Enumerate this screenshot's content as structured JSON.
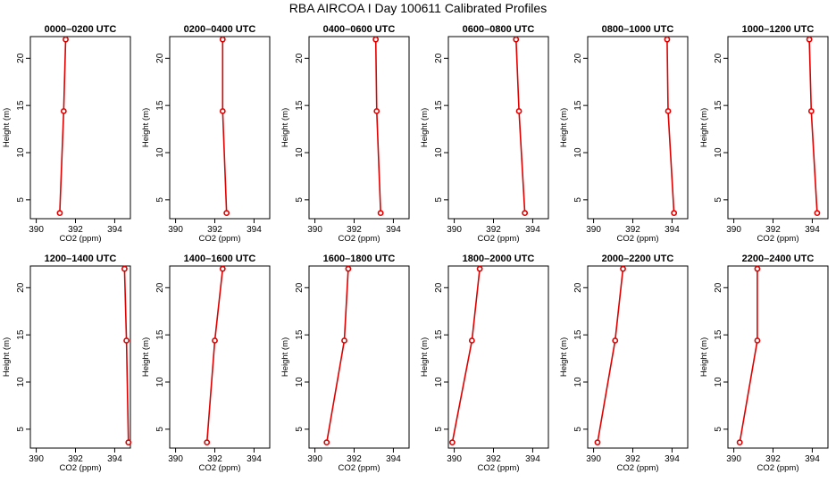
{
  "title": "RBA AIRCOA I  Day 100611  Calibrated Profiles",
  "colors": {
    "series": "#e00000",
    "axis": "#000000",
    "background": "#ffffff"
  },
  "chart_data": [
    {
      "type": "line",
      "title": "0000–0200 UTC",
      "xlabel": "CO2 (ppm)",
      "ylabel": "Height (m)",
      "xlim": [
        389.7,
        394.8
      ],
      "ylim": [
        3,
        22.3
      ],
      "xticks": [
        390,
        392,
        394
      ],
      "yticks": [
        5,
        10,
        15,
        20
      ],
      "x": [
        391.5,
        391.4,
        391.2
      ],
      "y": [
        22,
        14.4,
        3.6
      ]
    },
    {
      "type": "line",
      "title": "0200–0400 UTC",
      "xlabel": "CO2 (ppm)",
      "ylabel": "Height (m)",
      "xlim": [
        389.7,
        394.8
      ],
      "ylim": [
        3,
        22.3
      ],
      "xticks": [
        390,
        392,
        394
      ],
      "yticks": [
        5,
        10,
        15,
        20
      ],
      "x": [
        392.4,
        392.4,
        392.6
      ],
      "y": [
        22,
        14.4,
        3.6
      ]
    },
    {
      "type": "line",
      "title": "0400–0600 UTC",
      "xlabel": "CO2 (ppm)",
      "ylabel": "Height (m)",
      "xlim": [
        389.7,
        394.8
      ],
      "ylim": [
        3,
        22.3
      ],
      "xticks": [
        390,
        392,
        394
      ],
      "yticks": [
        5,
        10,
        15,
        20
      ],
      "x": [
        393.1,
        393.15,
        393.35
      ],
      "y": [
        22,
        14.4,
        3.6
      ]
    },
    {
      "type": "line",
      "title": "0600–0800 UTC",
      "xlabel": "CO2 (ppm)",
      "ylabel": "Height (m)",
      "xlim": [
        389.7,
        394.8
      ],
      "ylim": [
        3,
        22.3
      ],
      "xticks": [
        390,
        392,
        394
      ],
      "yticks": [
        5,
        10,
        15,
        20
      ],
      "x": [
        393.15,
        393.3,
        393.6
      ],
      "y": [
        22,
        14.4,
        3.6
      ]
    },
    {
      "type": "line",
      "title": "0800–1000 UTC",
      "xlabel": "CO2 (ppm)",
      "ylabel": "Height (m)",
      "xlim": [
        389.7,
        394.8
      ],
      "ylim": [
        3,
        22.3
      ],
      "xticks": [
        390,
        392,
        394
      ],
      "yticks": [
        5,
        10,
        15,
        20
      ],
      "x": [
        393.75,
        393.8,
        394.1
      ],
      "y": [
        22,
        14.4,
        3.6
      ]
    },
    {
      "type": "line",
      "title": "1000–1200 UTC",
      "xlabel": "CO2 (ppm)",
      "ylabel": "Height (m)",
      "xlim": [
        389.7,
        394.8
      ],
      "ylim": [
        3,
        22.3
      ],
      "xticks": [
        390,
        392,
        394
      ],
      "yticks": [
        5,
        10,
        15,
        20
      ],
      "x": [
        393.85,
        393.95,
        394.25
      ],
      "y": [
        22,
        14.4,
        3.6
      ]
    },
    {
      "type": "line",
      "title": "1200–1400 UTC",
      "xlabel": "CO2 (ppm)",
      "ylabel": "Height (m)",
      "xlim": [
        389.7,
        394.8
      ],
      "ylim": [
        3,
        22.3
      ],
      "xticks": [
        390,
        392,
        394
      ],
      "yticks": [
        5,
        10,
        15,
        20
      ],
      "x": [
        394.5,
        394.6,
        394.7
      ],
      "y": [
        22,
        14.4,
        3.6
      ]
    },
    {
      "type": "line",
      "title": "1400–1600 UTC",
      "xlabel": "CO2 (ppm)",
      "ylabel": "Height (m)",
      "xlim": [
        389.7,
        394.8
      ],
      "ylim": [
        3,
        22.3
      ],
      "xticks": [
        390,
        392,
        394
      ],
      "yticks": [
        5,
        10,
        15,
        20
      ],
      "x": [
        392.4,
        392.0,
        391.6
      ],
      "y": [
        22,
        14.4,
        3.6
      ]
    },
    {
      "type": "line",
      "title": "1600–1800 UTC",
      "xlabel": "CO2 (ppm)",
      "ylabel": "Height (m)",
      "xlim": [
        389.7,
        394.8
      ],
      "ylim": [
        3,
        22.3
      ],
      "xticks": [
        390,
        392,
        394
      ],
      "yticks": [
        5,
        10,
        15,
        20
      ],
      "x": [
        391.7,
        391.5,
        390.6
      ],
      "y": [
        22,
        14.4,
        3.6
      ]
    },
    {
      "type": "line",
      "title": "1800–2000 UTC",
      "xlabel": "CO2 (ppm)",
      "ylabel": "Height (m)",
      "xlim": [
        389.7,
        394.8
      ],
      "ylim": [
        3,
        22.3
      ],
      "xticks": [
        390,
        392,
        394
      ],
      "yticks": [
        5,
        10,
        15,
        20
      ],
      "x": [
        391.3,
        390.9,
        389.9
      ],
      "y": [
        22,
        14.4,
        3.6
      ]
    },
    {
      "type": "line",
      "title": "2000–2200 UTC",
      "xlabel": "CO2 (ppm)",
      "ylabel": "Height (m)",
      "xlim": [
        389.7,
        394.8
      ],
      "ylim": [
        3,
        22.3
      ],
      "xticks": [
        390,
        392,
        394
      ],
      "yticks": [
        5,
        10,
        15,
        20
      ],
      "x": [
        391.5,
        391.1,
        390.2
      ],
      "y": [
        22,
        14.4,
        3.6
      ]
    },
    {
      "type": "line",
      "title": "2200–2400 UTC",
      "xlabel": "CO2 (ppm)",
      "ylabel": "Height (m)",
      "xlim": [
        389.7,
        394.8
      ],
      "ylim": [
        3,
        22.3
      ],
      "xticks": [
        390,
        392,
        394
      ],
      "yticks": [
        5,
        10,
        15,
        20
      ],
      "x": [
        391.2,
        391.2,
        390.3
      ],
      "y": [
        22,
        14.4,
        3.6
      ]
    }
  ]
}
